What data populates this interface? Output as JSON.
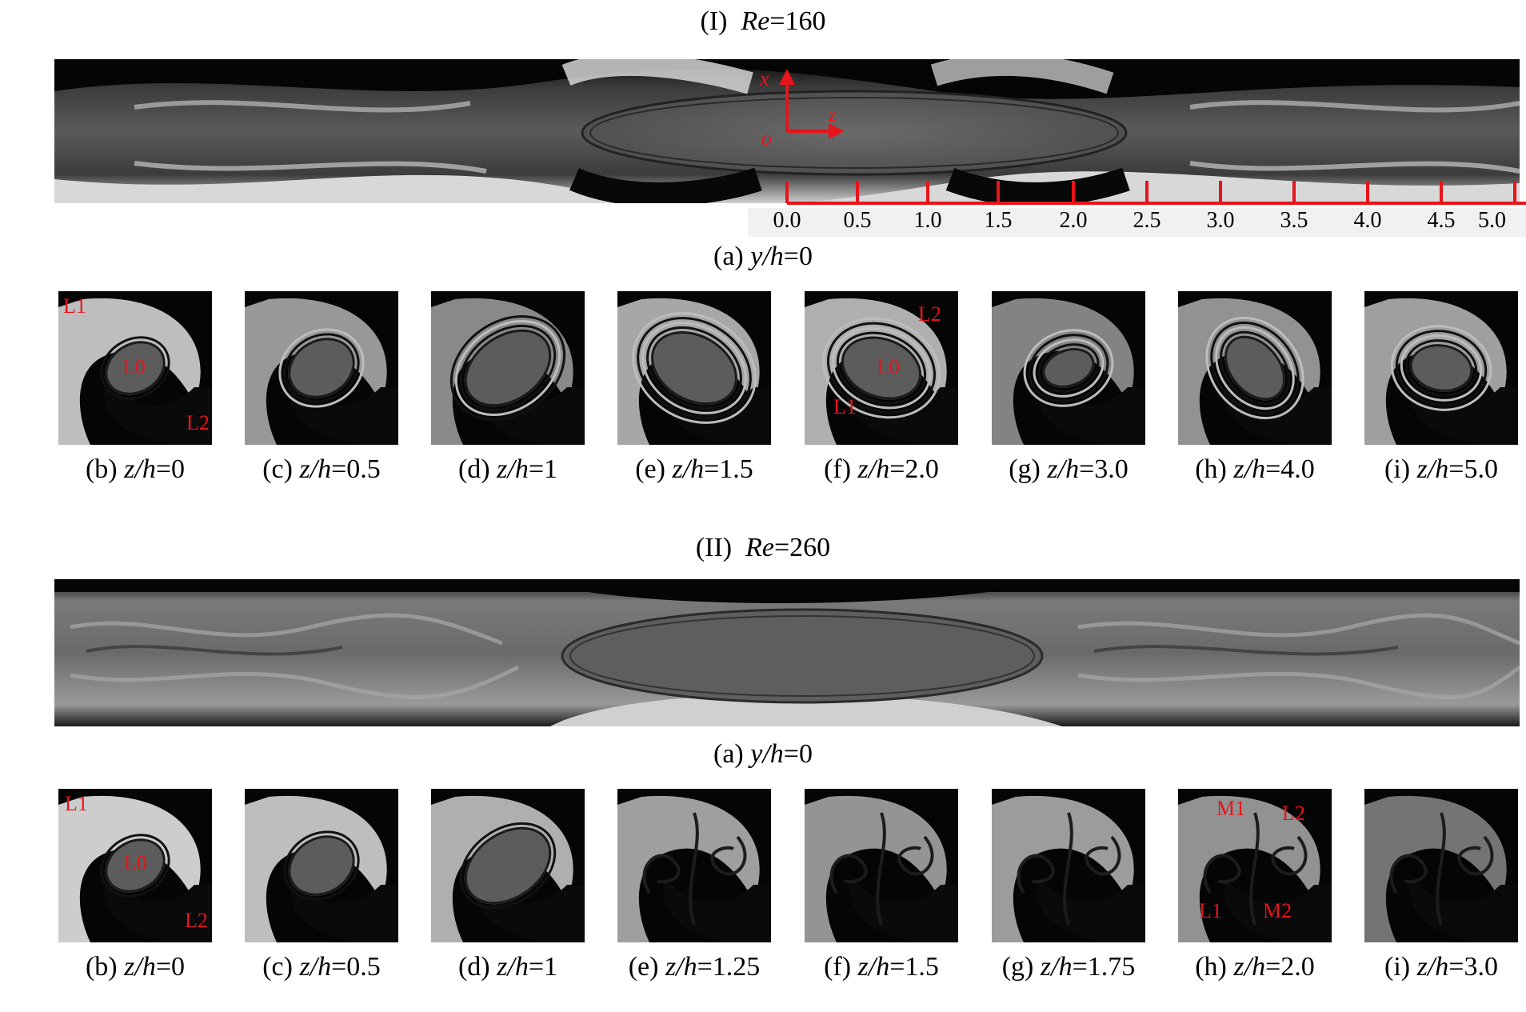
{
  "section1": {
    "title_prefix": "(I)",
    "title_var": "Re",
    "title_val": "=160",
    "strip_caption_prefix": "(a)",
    "strip_caption_var": "y/h",
    "strip_caption_val": "=0",
    "axis_labels": {
      "x": "x",
      "z": "z",
      "o": "o"
    },
    "scale_ticks": [
      "0.0",
      "0.5",
      "1.0",
      "1.5",
      "2.0",
      "2.5",
      "3.0",
      "3.5",
      "4.0",
      "4.5",
      "5.0"
    ],
    "panels": [
      {
        "prefix": "(b)",
        "var": "z/h",
        "val": "=0",
        "labels": [
          "L1",
          "L0",
          "L2"
        ]
      },
      {
        "prefix": "(c)",
        "var": "z/h",
        "val": "=0.5",
        "labels": []
      },
      {
        "prefix": "(d)",
        "var": "z/h",
        "val": "=1",
        "labels": []
      },
      {
        "prefix": "(e)",
        "var": "z/h",
        "val": "=1.5",
        "labels": []
      },
      {
        "prefix": "(f)",
        "var": "z/h",
        "val": "=2.0",
        "labels": [
          "L2",
          "L0",
          "L1"
        ]
      },
      {
        "prefix": "(g)",
        "var": "z/h",
        "val": "=3.0",
        "labels": []
      },
      {
        "prefix": "(h)",
        "var": "z/h",
        "val": "=4.0",
        "labels": []
      },
      {
        "prefix": "(i)",
        "var": "z/h",
        "val": "=5.0",
        "labels": []
      }
    ]
  },
  "section2": {
    "title_prefix": "(II)",
    "title_var": "Re",
    "title_val": "=260",
    "strip_caption_prefix": "(a)",
    "strip_caption_var": "y/h",
    "strip_caption_val": "=0",
    "panels": [
      {
        "prefix": "(b)",
        "var": "z/h",
        "val": "=0",
        "labels": [
          "L1",
          "L0",
          "L2"
        ]
      },
      {
        "prefix": "(c)",
        "var": "z/h",
        "val": "=0.5",
        "labels": []
      },
      {
        "prefix": "(d)",
        "var": "z/h",
        "val": "=1",
        "labels": []
      },
      {
        "prefix": "(e)",
        "var": "z/h",
        "val": "=1.25",
        "labels": []
      },
      {
        "prefix": "(f)",
        "var": "z/h",
        "val": "=1.5",
        "labels": []
      },
      {
        "prefix": "(g)",
        "var": "z/h",
        "val": "=1.75",
        "labels": []
      },
      {
        "prefix": "(h)",
        "var": "z/h",
        "val": "=2.0",
        "labels": [
          "M1",
          "L2",
          "L1",
          "M2"
        ]
      },
      {
        "prefix": "(i)",
        "var": "z/h",
        "val": "=3.0",
        "labels": []
      }
    ]
  },
  "colors": {
    "annotation_red": "#e8141b",
    "background": "#ffffff"
  }
}
